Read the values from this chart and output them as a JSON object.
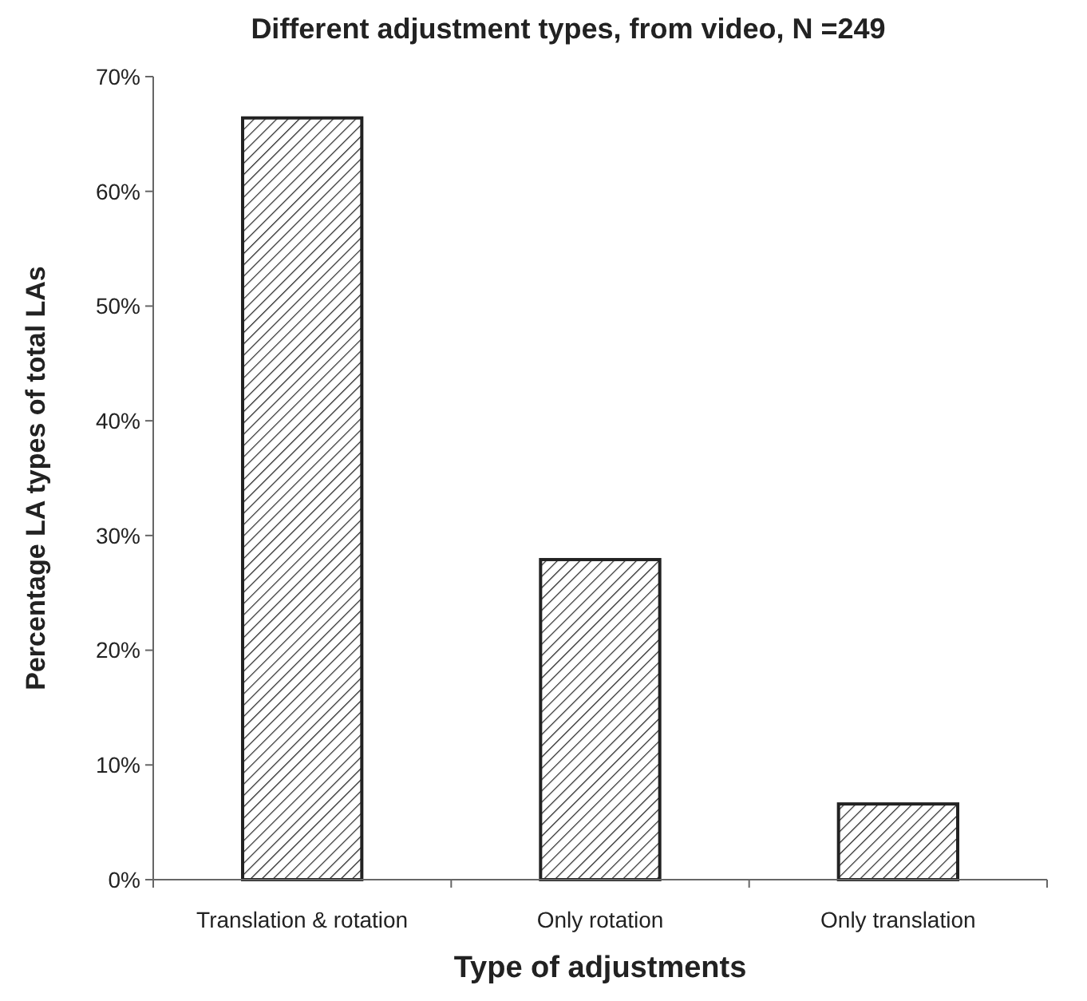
{
  "chart_data": {
    "type": "bar",
    "title": "Different adjustment types, from video, N =249",
    "xlabel": "Type of adjustments",
    "ylabel": "Percentage LA types of total LAs",
    "categories": [
      "Translation & rotation",
      "Only rotation",
      "Only translation"
    ],
    "values": [
      66.4,
      27.9,
      6.6
    ],
    "color": "#222222",
    "ylim": [
      0,
      70
    ],
    "yticks": [
      {
        "value": 0,
        "label": "0%"
      },
      {
        "value": 10,
        "label": "10%"
      },
      {
        "value": 20,
        "label": "20%"
      },
      {
        "value": 30,
        "label": "30%"
      },
      {
        "value": 40,
        "label": "40%"
      },
      {
        "value": 50,
        "label": "50%"
      },
      {
        "value": 60,
        "label": "60%"
      },
      {
        "value": 70,
        "label": "70%"
      }
    ]
  }
}
